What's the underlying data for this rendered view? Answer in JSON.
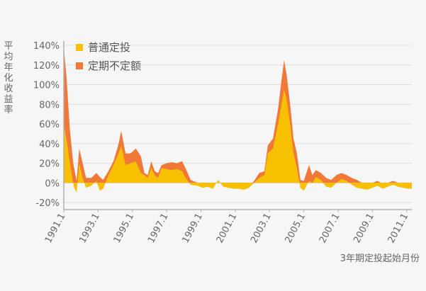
{
  "chart_data": {
    "type": "area",
    "ylabel": "平均年化收益率",
    "xlabel": "3年期定投起始月份",
    "ylim": [
      -20,
      140
    ],
    "y_ticks": [
      "140%",
      "120%",
      "100%",
      "80%",
      "60%",
      "40%",
      "20%",
      "0%",
      "-20%"
    ],
    "y_tick_values": [
      140,
      120,
      100,
      80,
      60,
      40,
      20,
      0,
      -20
    ],
    "x_ticks": [
      "1991.1",
      "1993.1",
      "1995.1",
      "1997.1",
      "1999.1",
      "2001.1",
      "2003.1",
      "2005.1",
      "2007.1",
      "2009.1",
      "2011.1"
    ],
    "x_tick_values": [
      1991.0,
      1993.0,
      1995.0,
      1997.0,
      1999.0,
      2001.0,
      2003.0,
      2005.0,
      2007.0,
      2009.0,
      2011.0
    ],
    "xlim": [
      1991.0,
      2011.3
    ],
    "legend_position": "top-left",
    "series": [
      {
        "name": "定期不定额",
        "color": "#f07838",
        "points": [
          [
            1991.0,
            138
          ],
          [
            1991.15,
            110
          ],
          [
            1991.35,
            55
          ],
          [
            1991.55,
            20
          ],
          [
            1991.75,
            2
          ],
          [
            1991.9,
            35
          ],
          [
            1992.1,
            20
          ],
          [
            1992.3,
            5
          ],
          [
            1992.6,
            5
          ],
          [
            1992.9,
            10
          ],
          [
            1993.1,
            6
          ],
          [
            1993.3,
            3
          ],
          [
            1993.6,
            12
          ],
          [
            1993.9,
            22
          ],
          [
            1994.2,
            40
          ],
          [
            1994.35,
            53
          ],
          [
            1994.6,
            30
          ],
          [
            1994.9,
            30
          ],
          [
            1995.2,
            35
          ],
          [
            1995.5,
            27
          ],
          [
            1995.7,
            10
          ],
          [
            1995.9,
            8
          ],
          [
            1996.1,
            22
          ],
          [
            1996.3,
            12
          ],
          [
            1996.5,
            10
          ],
          [
            1996.7,
            18
          ],
          [
            1997.0,
            20
          ],
          [
            1997.3,
            21
          ],
          [
            1997.6,
            20
          ],
          [
            1997.9,
            22
          ],
          [
            1998.1,
            15
          ],
          [
            1998.4,
            3
          ],
          [
            1998.8,
            0
          ],
          [
            1999.1,
            -3
          ],
          [
            1999.4,
            -2
          ],
          [
            1999.7,
            -4
          ],
          [
            2000.0,
            2
          ],
          [
            2000.3,
            -2
          ],
          [
            2000.6,
            -3
          ],
          [
            2000.9,
            -4
          ],
          [
            2001.2,
            -5
          ],
          [
            2001.5,
            -5
          ],
          [
            2001.8,
            -4
          ],
          [
            2002.1,
            2
          ],
          [
            2002.4,
            10
          ],
          [
            2002.7,
            12
          ],
          [
            2002.9,
            38
          ],
          [
            2003.2,
            45
          ],
          [
            2003.5,
            75
          ],
          [
            2003.7,
            105
          ],
          [
            2003.85,
            125
          ],
          [
            2004.0,
            110
          ],
          [
            2004.2,
            80
          ],
          [
            2004.4,
            45
          ],
          [
            2004.6,
            30
          ],
          [
            2004.8,
            3
          ],
          [
            2005.0,
            2
          ],
          [
            2005.3,
            18
          ],
          [
            2005.5,
            8
          ],
          [
            2005.7,
            13
          ],
          [
            2006.0,
            10
          ],
          [
            2006.3,
            5
          ],
          [
            2006.6,
            3
          ],
          [
            2006.9,
            8
          ],
          [
            2007.2,
            10
          ],
          [
            2007.5,
            8
          ],
          [
            2007.8,
            5
          ],
          [
            2008.1,
            3
          ],
          [
            2008.4,
            0
          ],
          [
            2008.7,
            -2
          ],
          [
            2009.0,
            0
          ],
          [
            2009.3,
            2
          ],
          [
            2009.6,
            -1
          ],
          [
            2009.9,
            0
          ],
          [
            2010.2,
            2
          ],
          [
            2010.5,
            0
          ],
          [
            2010.8,
            -2
          ],
          [
            2011.1,
            -3
          ],
          [
            2011.3,
            -3
          ]
        ]
      },
      {
        "name": "普通定投",
        "color": "#f7c000",
        "points": [
          [
            1991.0,
            60
          ],
          [
            1991.2,
            40
          ],
          [
            1991.4,
            15
          ],
          [
            1991.6,
            -5
          ],
          [
            1991.75,
            -10
          ],
          [
            1991.9,
            20
          ],
          [
            1992.1,
            5
          ],
          [
            1992.3,
            -5
          ],
          [
            1992.6,
            -3
          ],
          [
            1992.9,
            2
          ],
          [
            1993.1,
            -8
          ],
          [
            1993.3,
            -6
          ],
          [
            1993.6,
            8
          ],
          [
            1993.9,
            18
          ],
          [
            1994.2,
            30
          ],
          [
            1994.35,
            38
          ],
          [
            1994.6,
            18
          ],
          [
            1994.9,
            20
          ],
          [
            1995.2,
            22
          ],
          [
            1995.5,
            10
          ],
          [
            1995.7,
            8
          ],
          [
            1995.9,
            5
          ],
          [
            1996.1,
            15
          ],
          [
            1996.3,
            8
          ],
          [
            1996.5,
            5
          ],
          [
            1996.7,
            15
          ],
          [
            1997.0,
            14
          ],
          [
            1997.3,
            13
          ],
          [
            1997.6,
            14
          ],
          [
            1997.9,
            12
          ],
          [
            1998.1,
            5
          ],
          [
            1998.4,
            -2
          ],
          [
            1998.8,
            -3
          ],
          [
            1999.1,
            -5
          ],
          [
            1999.4,
            -4
          ],
          [
            1999.7,
            -6
          ],
          [
            2000.0,
            3
          ],
          [
            2000.3,
            -4
          ],
          [
            2000.6,
            -5
          ],
          [
            2000.9,
            -6
          ],
          [
            2001.2,
            -6
          ],
          [
            2001.5,
            -7
          ],
          [
            2001.8,
            -5
          ],
          [
            2002.1,
            0
          ],
          [
            2002.4,
            5
          ],
          [
            2002.7,
            8
          ],
          [
            2002.9,
            30
          ],
          [
            2003.2,
            35
          ],
          [
            2003.5,
            60
          ],
          [
            2003.7,
            80
          ],
          [
            2003.85,
            95
          ],
          [
            2004.0,
            85
          ],
          [
            2004.2,
            60
          ],
          [
            2004.4,
            30
          ],
          [
            2004.6,
            15
          ],
          [
            2004.8,
            -5
          ],
          [
            2005.0,
            -8
          ],
          [
            2005.3,
            2
          ],
          [
            2005.5,
            0
          ],
          [
            2005.7,
            6
          ],
          [
            2006.0,
            3
          ],
          [
            2006.3,
            -4
          ],
          [
            2006.6,
            -5
          ],
          [
            2006.9,
            0
          ],
          [
            2007.2,
            4
          ],
          [
            2007.5,
            2
          ],
          [
            2007.8,
            -2
          ],
          [
            2008.1,
            -5
          ],
          [
            2008.4,
            -6
          ],
          [
            2008.7,
            -7
          ],
          [
            2009.0,
            -5
          ],
          [
            2009.3,
            -3
          ],
          [
            2009.6,
            -6
          ],
          [
            2009.9,
            -4
          ],
          [
            2010.2,
            -2
          ],
          [
            2010.5,
            -4
          ],
          [
            2010.8,
            -5
          ],
          [
            2011.1,
            -6
          ],
          [
            2011.3,
            -6
          ]
        ]
      }
    ]
  },
  "legend": [
    {
      "label": "普通定投",
      "color": "#f7c000"
    },
    {
      "label": "定期不定额",
      "color": "#f07838"
    }
  ],
  "colors": {
    "background": "#f6f6f6",
    "grid": "#dedede",
    "axis": "#b0b0b0",
    "text": "#666666"
  }
}
